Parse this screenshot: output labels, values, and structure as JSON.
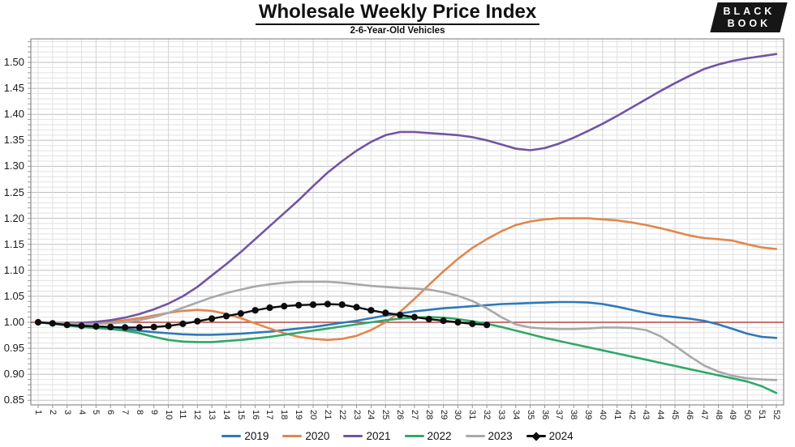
{
  "header": {
    "title": "Wholesale Weekly Price Index",
    "subtitle": "2-6-Year-Old Vehicles"
  },
  "logo": {
    "line1": "BLACK",
    "line2": "BOOK",
    "bg": "#161616",
    "fg": "#ffffff"
  },
  "chart_data": {
    "type": "line",
    "title": "Wholesale Weekly Price Index",
    "subtitle": "2-6-Year-Old Vehicles",
    "xlabel": "",
    "ylabel": "",
    "x": [
      1,
      2,
      3,
      4,
      5,
      6,
      7,
      8,
      9,
      10,
      11,
      12,
      13,
      14,
      15,
      16,
      17,
      18,
      19,
      20,
      21,
      22,
      23,
      24,
      25,
      26,
      27,
      28,
      29,
      30,
      31,
      32,
      33,
      34,
      35,
      36,
      37,
      38,
      39,
      40,
      41,
      42,
      43,
      44,
      45,
      46,
      47,
      48,
      49,
      50,
      51,
      52
    ],
    "ylim": [
      0.84,
      1.545
    ],
    "yticks": [
      1.5,
      1.45,
      1.4,
      1.35,
      1.3,
      1.25,
      1.2,
      1.15,
      1.1,
      1.05,
      1.0,
      0.95,
      0.9,
      0.85
    ],
    "grid": "major+minor",
    "legend_position": "bottom",
    "reference_line": {
      "value": 1.0,
      "color": "#b5473f"
    },
    "series": [
      {
        "name": "2019",
        "color": "#2e79b8",
        "marker": false,
        "values": [
          1.0,
          0.998,
          0.996,
          0.994,
          0.992,
          0.99,
          0.987,
          0.984,
          0.981,
          0.979,
          0.977,
          0.976,
          0.976,
          0.977,
          0.978,
          0.98,
          0.982,
          0.985,
          0.988,
          0.991,
          0.995,
          0.999,
          1.003,
          1.008,
          1.013,
          1.017,
          1.021,
          1.024,
          1.027,
          1.029,
          1.031,
          1.033,
          1.035,
          1.036,
          1.037,
          1.038,
          1.039,
          1.039,
          1.038,
          1.035,
          1.03,
          1.024,
          1.018,
          1.013,
          1.01,
          1.007,
          1.003,
          0.996,
          0.987,
          0.978,
          0.972,
          0.97
        ]
      },
      {
        "name": "2020",
        "color": "#e0874e",
        "marker": false,
        "values": [
          1.0,
          0.999,
          0.998,
          0.998,
          0.999,
          1.001,
          1.004,
          1.008,
          1.013,
          1.018,
          1.022,
          1.024,
          1.022,
          1.016,
          1.008,
          0.998,
          0.988,
          0.979,
          0.972,
          0.968,
          0.966,
          0.968,
          0.974,
          0.985,
          1.0,
          1.02,
          1.045,
          1.072,
          1.098,
          1.122,
          1.143,
          1.16,
          1.175,
          1.187,
          1.194,
          1.198,
          1.2,
          1.2,
          1.2,
          1.198,
          1.196,
          1.192,
          1.187,
          1.181,
          1.174,
          1.167,
          1.162,
          1.16,
          1.157,
          1.15,
          1.144,
          1.141
        ]
      },
      {
        "name": "2021",
        "color": "#7155a3",
        "marker": false,
        "values": [
          1.0,
          0.999,
          0.998,
          0.999,
          1.001,
          1.004,
          1.009,
          1.016,
          1.025,
          1.036,
          1.05,
          1.068,
          1.09,
          1.112,
          1.135,
          1.16,
          1.185,
          1.21,
          1.235,
          1.262,
          1.288,
          1.31,
          1.33,
          1.347,
          1.36,
          1.366,
          1.366,
          1.364,
          1.362,
          1.36,
          1.356,
          1.35,
          1.342,
          1.334,
          1.331,
          1.335,
          1.344,
          1.355,
          1.368,
          1.382,
          1.397,
          1.413,
          1.429,
          1.445,
          1.46,
          1.474,
          1.487,
          1.496,
          1.503,
          1.508,
          1.512,
          1.516
        ]
      },
      {
        "name": "2022",
        "color": "#2fa86a",
        "marker": false,
        "values": [
          1.0,
          0.997,
          0.994,
          0.991,
          0.989,
          0.987,
          0.984,
          0.979,
          0.972,
          0.966,
          0.963,
          0.962,
          0.962,
          0.964,
          0.966,
          0.969,
          0.972,
          0.976,
          0.98,
          0.984,
          0.988,
          0.992,
          0.996,
          1.0,
          1.004,
          1.007,
          1.009,
          1.01,
          1.009,
          1.006,
          1.002,
          0.997,
          0.991,
          0.984,
          0.977,
          0.97,
          0.964,
          0.958,
          0.952,
          0.946,
          0.94,
          0.934,
          0.928,
          0.922,
          0.916,
          0.91,
          0.904,
          0.898,
          0.892,
          0.886,
          0.877,
          0.864
        ]
      },
      {
        "name": "2023",
        "color": "#a8a8a8",
        "marker": false,
        "values": [
          1.0,
          0.999,
          0.998,
          0.997,
          0.997,
          0.998,
          1.0,
          1.004,
          1.01,
          1.018,
          1.028,
          1.038,
          1.048,
          1.056,
          1.063,
          1.069,
          1.073,
          1.076,
          1.078,
          1.078,
          1.078,
          1.076,
          1.073,
          1.07,
          1.068,
          1.066,
          1.065,
          1.063,
          1.058,
          1.051,
          1.041,
          1.027,
          1.01,
          0.996,
          0.99,
          0.988,
          0.987,
          0.987,
          0.988,
          0.99,
          0.99,
          0.989,
          0.985,
          0.973,
          0.955,
          0.935,
          0.917,
          0.905,
          0.897,
          0.892,
          0.89,
          0.889
        ]
      },
      {
        "name": "2024",
        "color": "#0d0d0d",
        "marker": true,
        "values": [
          1.0,
          0.998,
          0.995,
          0.993,
          0.992,
          0.991,
          0.99,
          0.99,
          0.991,
          0.993,
          0.997,
          1.002,
          1.007,
          1.012,
          1.017,
          1.023,
          1.028,
          1.031,
          1.033,
          1.034,
          1.035,
          1.034,
          1.029,
          1.023,
          1.018,
          1.014,
          1.01,
          1.006,
          1.003,
          1.0,
          0.997,
          0.995
        ]
      }
    ]
  }
}
